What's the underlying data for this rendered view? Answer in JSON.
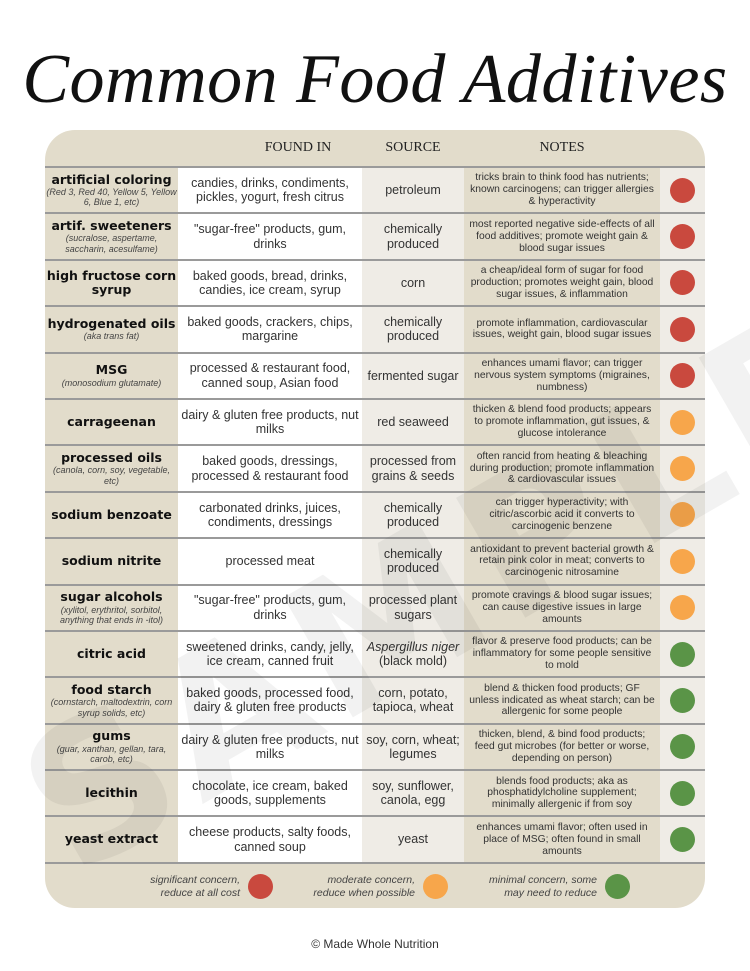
{
  "title": "Common Food Additives",
  "headers": {
    "found_in": "FOUND IN",
    "source": "SOURCE",
    "notes": "NOTES"
  },
  "colors": {
    "significant": "#c9493e",
    "moderate": "#f7a64b",
    "minimal": "#5a9447"
  },
  "rows": [
    {
      "name": "artificial coloring",
      "sub": "(Red 3, Red 40, Yellow 5, Yellow 6, Blue 1, etc)",
      "found": "candies, drinks, condiments, pickles, yogurt, fresh citrus",
      "source": "petroleum",
      "notes": "tricks brain to think food has nutrients; known carcinogens; can trigger allergies & hyperactivity",
      "level": "significant"
    },
    {
      "name": "artif. sweeteners",
      "sub": "(sucralose, aspertame, saccharin, acesulfame)",
      "found": "\"sugar-free\" products, gum, drinks",
      "source": "chemically produced",
      "notes": "most reported negative side-effects of all food additives; promote weight gain & blood sugar issues",
      "level": "significant"
    },
    {
      "name": "high fructose corn syrup",
      "sub": "",
      "found": "baked goods, bread, drinks, candies, ice cream, syrup",
      "source": "corn",
      "notes": "a cheap/ideal form of sugar for food production; promotes weight gain, blood sugar issues, & inflammation",
      "level": "significant"
    },
    {
      "name": "hydrogenated oils",
      "sub": "(aka trans fat)",
      "found": "baked goods, crackers, chips, margarine",
      "source": "chemically produced",
      "notes": "promote inflammation, cardiovascular issues, weight gain, blood sugar issues",
      "level": "significant"
    },
    {
      "name": "MSG",
      "sub": "(monosodium glutamate)",
      "found": "processed & restaurant food, canned soup, Asian food",
      "source": "fermented sugar",
      "notes": "enhances umami flavor; can trigger nervous system symptoms (migraines, numbness)",
      "level": "significant"
    },
    {
      "name": "carrageenan",
      "sub": "",
      "found": "dairy & gluten free products, nut milks",
      "source": "red seaweed",
      "notes": "thicken & blend food products; appears to promote inflammation, gut issues, & glucose intolerance",
      "level": "moderate"
    },
    {
      "name": "processed oils",
      "sub": "(canola, corn, soy, vegetable, etc)",
      "found": "baked goods, dressings, processed & restaurant food",
      "source": "processed from grains & seeds",
      "notes": "often rancid from heating & bleaching during production; promote inflammation & cardiovascular issues",
      "level": "moderate"
    },
    {
      "name": "sodium benzoate",
      "sub": "",
      "found": "carbonated drinks, juices, condiments, dressings",
      "source": "chemically produced",
      "notes": "can trigger hyperactivity; with citric/ascorbic acid it converts to carcinogenic benzene",
      "level": "moderate"
    },
    {
      "name": "sodium nitrite",
      "sub": "",
      "found": "processed meat",
      "source": "chemically produced",
      "notes": "antioxidant to prevent bacterial growth & retain pink color in meat; converts to carcinogenic nitrosamine",
      "level": "moderate"
    },
    {
      "name": "sugar alcohols",
      "sub": "(xylitol, erythritol, sorbitol, anything that ends in -itol)",
      "found": "\"sugar-free\" products, gum, drinks",
      "source": "processed plant sugars",
      "notes": "promote cravings & blood sugar issues; can cause digestive issues in large amounts",
      "level": "moderate"
    },
    {
      "name": "citric acid",
      "sub": "",
      "found": "sweetened drinks, candy, jelly, ice cream, canned fruit",
      "source": "Aspergillus niger (black mold)",
      "notes": "flavor & preserve food products; can be inflammatory for some people sensitive to mold",
      "level": "minimal"
    },
    {
      "name": "food starch",
      "sub": "(cornstarch, maltodextrin, corn syrup solids, etc)",
      "found": "baked goods, processed food, dairy & gluten free products",
      "source": "corn, potato, tapioca, wheat",
      "notes": "blend & thicken food products; GF unless indicated as wheat starch; can be allergenic for some people",
      "level": "minimal"
    },
    {
      "name": "gums",
      "sub": "(guar, xanthan, gellan, tara, carob, etc)",
      "found": "dairy & gluten free products, nut milks",
      "source": "soy, corn, wheat; legumes",
      "notes": "thicken, blend, & bind food products; feed gut microbes (for better or worse, depending on person)",
      "level": "minimal"
    },
    {
      "name": "lecithin",
      "sub": "",
      "found": "chocolate, ice cream, baked goods, supplements",
      "source": "soy, sunflower, canola, egg",
      "notes": "blends food products; aka as phosphatidylcholine supplement; minimally allergenic if from soy",
      "level": "minimal"
    },
    {
      "name": "yeast extract",
      "sub": "",
      "found": "cheese products, salty foods, canned soup",
      "source": "yeast",
      "notes": "enhances umami flavor; often used in place of MSG; often found in small amounts",
      "level": "minimal"
    }
  ],
  "legend": {
    "significant": "significant concern, reduce at all cost",
    "moderate": "moderate concern, reduce when possible",
    "minimal": "minimal concern, some may need to reduce"
  },
  "watermark": "SAMPLE",
  "footer": "© Made Whole Nutrition"
}
